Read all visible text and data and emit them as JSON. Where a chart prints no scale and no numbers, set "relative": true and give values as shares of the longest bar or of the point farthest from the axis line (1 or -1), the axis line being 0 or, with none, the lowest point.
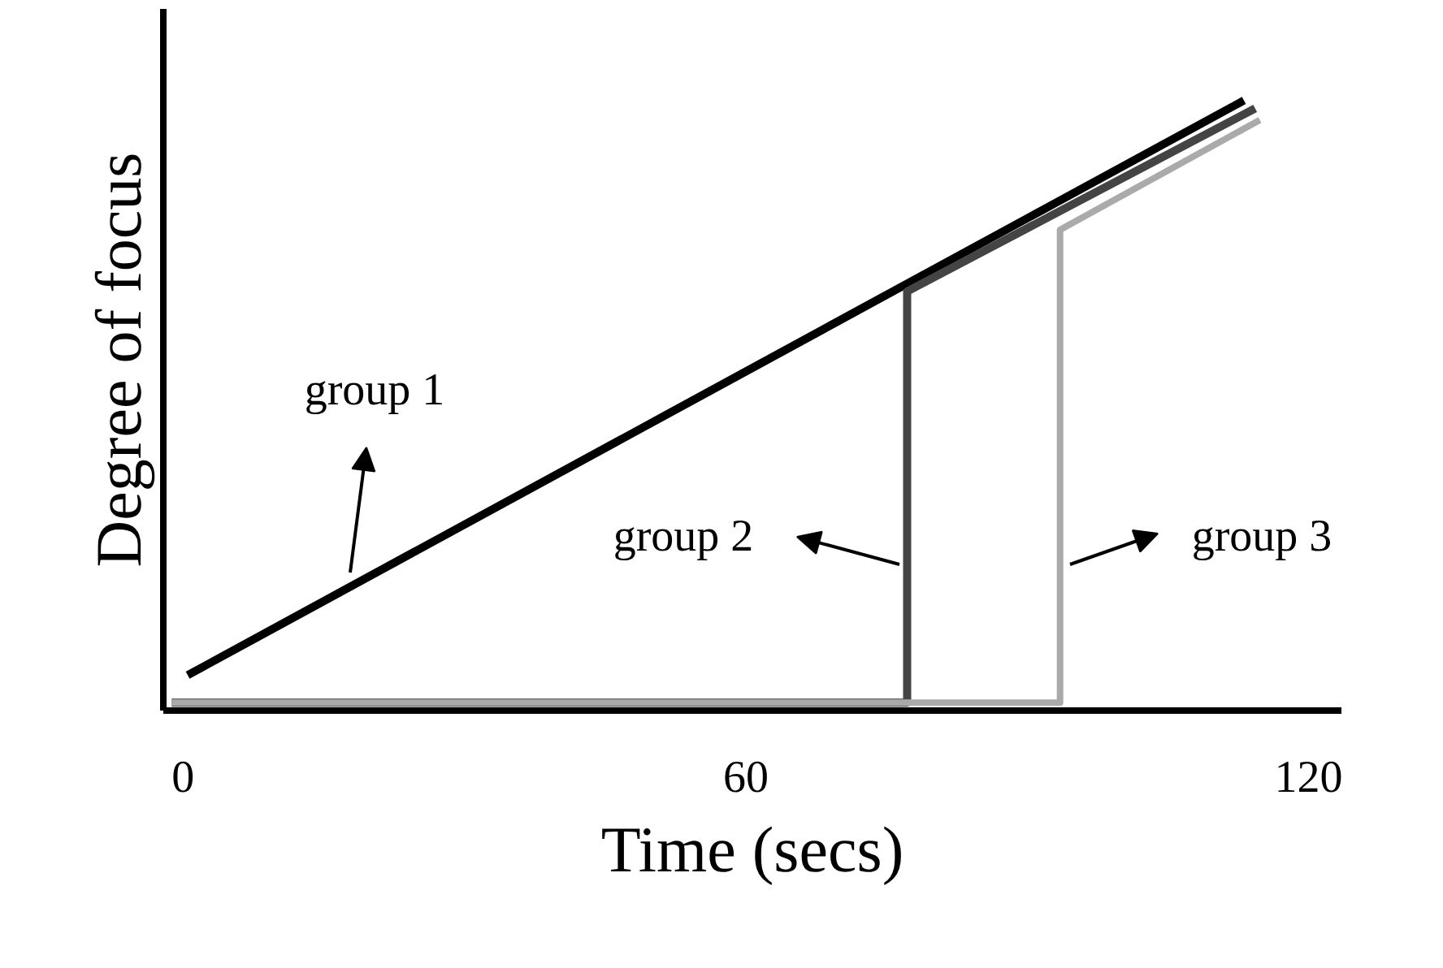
{
  "chart_data": {
    "type": "line",
    "relative": true,
    "xlabel": "Time (secs)",
    "ylabel": "Degree of focus",
    "xlim": [
      -2.1,
      123.5
    ],
    "xticks": [
      0,
      60,
      120
    ],
    "grid": false,
    "marker": "none",
    "line_style": "solid",
    "series": [
      {
        "color": "#000000",
        "x": [
          0.5,
          113.1
        ],
        "values": [
          0.058,
          1
        ]
      },
      {
        "color": "#444444",
        "x": [
          -1.2,
          77.2,
          77.2,
          114.3
        ],
        "values": [
          0.013,
          0.013,
          0.687,
          0.987
        ]
      },
      {
        "color": "#aaaaaa",
        "x": [
          -1.2,
          93.5,
          93.5,
          114.8
        ],
        "values": [
          0.013,
          0.013,
          0.788,
          0.968
        ]
      }
    ],
    "annotations": [
      "group 1",
      "group 2",
      "group 3"
    ]
  }
}
